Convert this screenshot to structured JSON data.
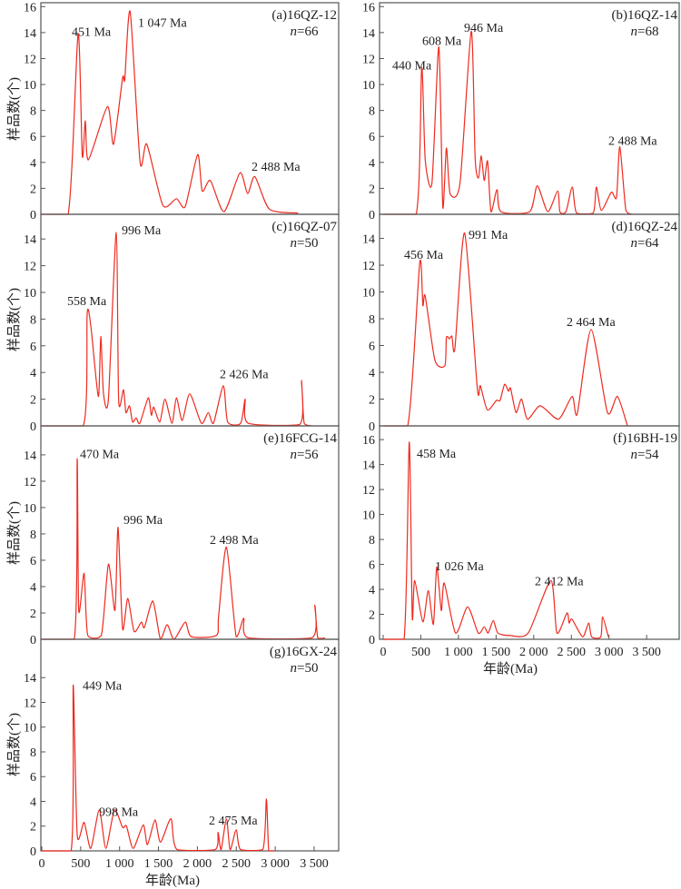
{
  "chart_data": {
    "type": "line",
    "ylabel": "样品数(个)",
    "xlabel": "年龄(Ma)",
    "xlim": [
      0,
      4000
    ],
    "xticks": [
      0,
      500,
      1000,
      1500,
      2000,
      2500,
      3000,
      3500
    ],
    "xtick_labels": [
      "0",
      "500",
      "1 000",
      "1 500",
      "2 000",
      "2 500",
      "3 000",
      "3 500"
    ],
    "accent_color": "#ee2a1f",
    "panels": [
      {
        "id": "a",
        "label": "(a)16QZ-12",
        "n_label": "n",
        "n_value": "=66",
        "ylim": [
          0,
          16.3
        ],
        "yticks": [
          0,
          2,
          4,
          6,
          8,
          10,
          12,
          14,
          16
        ],
        "curve": [
          [
            0,
            0
          ],
          [
            338,
            0
          ],
          [
            467,
            13.9
          ],
          [
            521,
            4.5
          ],
          [
            560,
            7.2
          ],
          [
            599,
            4.2
          ],
          [
            844,
            8.3
          ],
          [
            922,
            5.4
          ],
          [
            1039,
            10.5
          ],
          [
            1066,
            10.4
          ],
          [
            1136,
            15.6
          ],
          [
            1264,
            4.0
          ],
          [
            1350,
            5.4
          ],
          [
            1556,
            0.7
          ],
          [
            1731,
            1.2
          ],
          [
            1844,
            0.6
          ],
          [
            2003,
            4.6
          ],
          [
            2062,
            1.8
          ],
          [
            2167,
            2.6
          ],
          [
            2342,
            0.2
          ],
          [
            2547,
            3.2
          ],
          [
            2645,
            1.6
          ],
          [
            2739,
            2.9
          ],
          [
            2925,
            0.4
          ],
          [
            3294,
            0.1
          ]
        ],
        "annotations": [
          {
            "text": "451 Ma",
            "age": 385,
            "value": 14.1
          },
          {
            "text": "1 047 Ma",
            "age": 1237,
            "value": 14.8
          },
          {
            "text": "2 488 Ma",
            "age": 2695,
            "value": 3.7
          }
        ]
      },
      {
        "id": "b",
        "label": "(b)16QZ-14",
        "n_label": "n",
        "n_value": "=68",
        "ylim": [
          0,
          16.3
        ],
        "yticks": [
          0,
          2,
          4,
          6,
          8,
          10,
          12,
          14,
          16
        ],
        "curve": [
          [
            0,
            0
          ],
          [
            438,
            0
          ],
          [
            511,
            11.3
          ],
          [
            559,
            4.2
          ],
          [
            648,
            2.4
          ],
          [
            740,
            12.9
          ],
          [
            792,
            0.5
          ],
          [
            840,
            5.1
          ],
          [
            889,
            1.6
          ],
          [
            1021,
            2.4
          ],
          [
            1170,
            14.1
          ],
          [
            1222,
            4.3
          ],
          [
            1267,
            2.8
          ],
          [
            1303,
            4.5
          ],
          [
            1343,
            2.6
          ],
          [
            1387,
            4.1
          ],
          [
            1432,
            0.2
          ],
          [
            1512,
            1.9
          ],
          [
            1564,
            0.2
          ],
          [
            1946,
            0.2
          ],
          [
            2047,
            2.2
          ],
          [
            2187,
            0.2
          ],
          [
            2319,
            1.8
          ],
          [
            2348,
            0.2
          ],
          [
            2428,
            0.2
          ],
          [
            2513,
            2.1
          ],
          [
            2569,
            0.1
          ],
          [
            2790,
            0.1
          ],
          [
            2831,
            2.1
          ],
          [
            2898,
            0.3
          ],
          [
            3031,
            1.7
          ],
          [
            3100,
            1.3
          ],
          [
            3144,
            5.2
          ],
          [
            3224,
            0.3
          ],
          [
            3301,
            0
          ]
        ],
        "annotations": [
          {
            "text": "440 Ma",
            "age": 121,
            "value": 11.5
          },
          {
            "text": "608 Ma",
            "age": 519,
            "value": 13.4
          },
          {
            "text": "946 Ma",
            "age": 1074,
            "value": 14.4
          },
          {
            "text": "2 488 Ma",
            "age": 2991,
            "value": 5.7
          }
        ]
      },
      {
        "id": "c",
        "label": "(c)16QZ-07",
        "n_label": "n",
        "n_value": "=50",
        "ylim": [
          0,
          15.85
        ],
        "yticks": [
          0,
          2,
          4,
          6,
          8,
          10,
          12,
          14
        ],
        "curve": [
          [
            0,
            0
          ],
          [
            533,
            0
          ],
          [
            583,
            8.4
          ],
          [
            630,
            7.5
          ],
          [
            727,
            2.2
          ],
          [
            758,
            6.7
          ],
          [
            793,
            2.4
          ],
          [
            856,
            2.0
          ],
          [
            957,
            14.5
          ],
          [
            988,
            1.9
          ],
          [
            1050,
            2.7
          ],
          [
            1082,
            1.0
          ],
          [
            1128,
            1.5
          ],
          [
            1167,
            0.3
          ],
          [
            1214,
            0.6
          ],
          [
            1260,
            0.2
          ],
          [
            1369,
            2.1
          ],
          [
            1408,
            0.8
          ],
          [
            1439,
            1.4
          ],
          [
            1517,
            0.3
          ],
          [
            1584,
            2.0
          ],
          [
            1673,
            0.2
          ],
          [
            1731,
            2.1
          ],
          [
            1805,
            0.4
          ],
          [
            1902,
            2.4
          ],
          [
            2051,
            0.2
          ],
          [
            2140,
            1.0
          ],
          [
            2206,
            0.2
          ],
          [
            2334,
            3.0
          ],
          [
            2389,
            0.3
          ],
          [
            2556,
            0.2
          ],
          [
            2614,
            2.0
          ],
          [
            2654,
            0.2
          ],
          [
            3314,
            0.1
          ],
          [
            3337,
            3.4
          ],
          [
            3372,
            0.2
          ],
          [
            3470,
            0
          ]
        ],
        "annotations": [
          {
            "text": "558 Ma",
            "age": 327,
            "value": 9.4
          },
          {
            "text": "996 Ma",
            "age": 1027,
            "value": 14.7
          },
          {
            "text": "2 426 Ma",
            "age": 2287,
            "value": 3.9
          }
        ]
      },
      {
        "id": "d",
        "label": "(d)16QZ-24",
        "n_label": "n",
        "n_value": "=64",
        "ylim": [
          0,
          15.8
        ],
        "yticks": [
          0,
          2,
          4,
          6,
          8,
          10,
          12,
          14
        ],
        "curve": [
          [
            0,
            0
          ],
          [
            326,
            0
          ],
          [
            486,
            12.2
          ],
          [
            527,
            9.0
          ],
          [
            559,
            9.7
          ],
          [
            688,
            4.9
          ],
          [
            820,
            4.5
          ],
          [
            840,
            6.6
          ],
          [
            881,
            6.5
          ],
          [
            913,
            6.7
          ],
          [
            953,
            5.8
          ],
          [
            1082,
            14.4
          ],
          [
            1251,
            2.8
          ],
          [
            1291,
            3.0
          ],
          [
            1384,
            1.2
          ],
          [
            1504,
            1.9
          ],
          [
            1552,
            1.9
          ],
          [
            1613,
            3.1
          ],
          [
            1665,
            2.6
          ],
          [
            1693,
            2.8
          ],
          [
            1765,
            1.0
          ],
          [
            1838,
            2.0
          ],
          [
            1918,
            0.5
          ],
          [
            2087,
            1.5
          ],
          [
            2329,
            0.5
          ],
          [
            2510,
            2.2
          ],
          [
            2578,
            0.9
          ],
          [
            2762,
            7.2
          ],
          [
            2979,
            1.0
          ],
          [
            3112,
            2.2
          ],
          [
            3245,
            0
          ]
        ],
        "annotations": [
          {
            "text": "456 Ma",
            "age": 277,
            "value": 12.8
          },
          {
            "text": "991 Ma",
            "age": 1134,
            "value": 14.3
          },
          {
            "text": "2 464 Ma",
            "age": 2437,
            "value": 7.8
          }
        ]
      },
      {
        "id": "e",
        "label": "(e)16FCG-14",
        "n_label": "n",
        "n_value": "=56",
        "ylim": [
          0,
          16.2
        ],
        "yticks": [
          0,
          2,
          4,
          6,
          8,
          10,
          12,
          14
        ],
        "curve": [
          [
            0,
            0
          ],
          [
            416,
            0
          ],
          [
            455,
            13.7
          ],
          [
            475,
            2.2
          ],
          [
            544,
            5.0
          ],
          [
            591,
            0.3
          ],
          [
            766,
            0.3
          ],
          [
            856,
            5.7
          ],
          [
            941,
            2.2
          ],
          [
            980,
            8.5
          ],
          [
            1038,
            0.8
          ],
          [
            1105,
            3.1
          ],
          [
            1187,
            0.6
          ],
          [
            1280,
            1.3
          ],
          [
            1319,
            0.9
          ],
          [
            1428,
            2.9
          ],
          [
            1525,
            0
          ],
          [
            1611,
            1.1
          ],
          [
            1700,
            0
          ],
          [
            1844,
            1.3
          ],
          [
            1922,
            0.2
          ],
          [
            2245,
            0.3
          ],
          [
            2272,
            1.7
          ],
          [
            2373,
            7.0
          ],
          [
            2498,
            0.2
          ],
          [
            2595,
            1.6
          ],
          [
            2654,
            0.1
          ],
          [
            3470,
            0.1
          ],
          [
            3509,
            2.6
          ],
          [
            3547,
            0.1
          ],
          [
            3640,
            0.1
          ]
        ],
        "annotations": [
          {
            "text": "470 Ma",
            "age": 490,
            "value": 14.1
          },
          {
            "text": "996 Ma",
            "age": 1050,
            "value": 9.1
          },
          {
            "text": "2 498 Ma",
            "age": 2159,
            "value": 7.6
          }
        ]
      },
      {
        "id": "f",
        "label": "(f)16BH-19",
        "n_label": "n",
        "n_value": "=54",
        "ylim": [
          0,
          17.1
        ],
        "yticks": [
          0,
          2,
          4,
          6,
          8,
          10,
          12,
          14,
          16
        ],
        "curve": [
          [
            0,
            0
          ],
          [
            277,
            0
          ],
          [
            346,
            15.8
          ],
          [
            386,
            1.8
          ],
          [
            418,
            4.7
          ],
          [
            527,
            1.4
          ],
          [
            599,
            3.9
          ],
          [
            667,
            1.2
          ],
          [
            712,
            5.8
          ],
          [
            772,
            2.3
          ],
          [
            812,
            4.5
          ],
          [
            961,
            0.5
          ],
          [
            1122,
            2.6
          ],
          [
            1263,
            0.5
          ],
          [
            1343,
            1.0
          ],
          [
            1395,
            0.5
          ],
          [
            1463,
            1.5
          ],
          [
            1524,
            0.5
          ],
          [
            1685,
            0.3
          ],
          [
            1926,
            0.5
          ],
          [
            2228,
            4.7
          ],
          [
            2308,
            0.5
          ],
          [
            2441,
            2.1
          ],
          [
            2470,
            1.3
          ],
          [
            2509,
            1.6
          ],
          [
            2650,
            0.2
          ],
          [
            2730,
            1.3
          ],
          [
            2770,
            0.2
          ],
          [
            2891,
            0.2
          ],
          [
            2915,
            1.8
          ],
          [
            2991,
            0.2
          ]
        ],
        "annotations": [
          {
            "text": "458 Ma",
            "age": 446,
            "value": 14.9
          },
          {
            "text": "1 026 Ma",
            "age": 688,
            "value": 5.9
          },
          {
            "text": "2 412 Ma",
            "age": 2014,
            "value": 4.7
          }
        ]
      },
      {
        "id": "g",
        "label": "(g)16GX-24",
        "n_label": "n",
        "n_value": "=50",
        "ylim": [
          0,
          17.1
        ],
        "yticks": [
          0,
          2,
          4,
          6,
          8,
          10,
          12,
          14
        ],
        "curve": [
          [
            0,
            0
          ],
          [
            377,
            0
          ],
          [
            404,
            13.4
          ],
          [
            455,
            1.3
          ],
          [
            544,
            2.3
          ],
          [
            630,
            0.2
          ],
          [
            739,
            3.3
          ],
          [
            824,
            0.2
          ],
          [
            934,
            3.3
          ],
          [
            1038,
            1.9
          ],
          [
            1089,
            2.0
          ],
          [
            1175,
            0.2
          ],
          [
            1304,
            2.1
          ],
          [
            1358,
            0.5
          ],
          [
            1455,
            2.5
          ],
          [
            1525,
            0.7
          ],
          [
            1661,
            2.6
          ],
          [
            1739,
            0.1
          ],
          [
            2226,
            0.1
          ],
          [
            2265,
            1.5
          ],
          [
            2304,
            0.1
          ],
          [
            2373,
            2.6
          ],
          [
            2420,
            0.1
          ],
          [
            2498,
            1.7
          ],
          [
            2556,
            0.1
          ],
          [
            2840,
            0.1
          ],
          [
            2887,
            4.2
          ],
          [
            2917,
            0
          ],
          [
            2984,
            0
          ]
        ],
        "annotations": [
          {
            "text": "449 Ma",
            "age": 525,
            "value": 13.4
          },
          {
            "text": "998 Ma",
            "age": 735,
            "value": 3.2
          },
          {
            "text": "2 475 Ma",
            "age": 2147,
            "value": 2.5
          }
        ]
      }
    ]
  }
}
